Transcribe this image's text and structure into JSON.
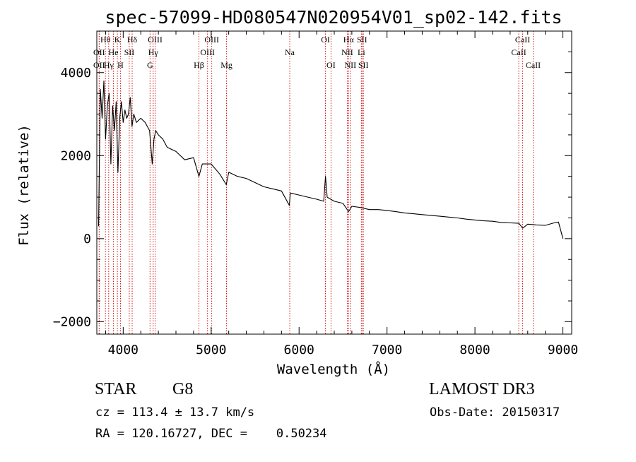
{
  "chart_data": {
    "type": "line",
    "title": "spec-57099-HD080547N020954V01_sp02-142.fits",
    "xlabel": "Wavelength (Å)",
    "ylabel": "Flux (relative)",
    "xlim": [
      3700,
      9100
    ],
    "ylim": [
      -2300,
      5000
    ],
    "xticks": [
      4000,
      5000,
      6000,
      7000,
      8000,
      9000
    ],
    "yticks": [
      -2000,
      0,
      2000,
      4000
    ],
    "minor_x_step": 200,
    "minor_y_step": 500,
    "series": [
      {
        "name": "flux",
        "x": [
          3720,
          3740,
          3760,
          3780,
          3800,
          3820,
          3840,
          3860,
          3880,
          3900,
          3920,
          3940,
          3960,
          3980,
          4000,
          4020,
          4040,
          4060,
          4080,
          4100,
          4120,
          4150,
          4200,
          4250,
          4300,
          4330,
          4350,
          4370,
          4400,
          4450,
          4500,
          4600,
          4700,
          4800,
          4861,
          4900,
          5000,
          5100,
          5172,
          5200,
          5300,
          5400,
          5500,
          5600,
          5700,
          5800,
          5890,
          5900,
          6000,
          6100,
          6200,
          6280,
          6300,
          6320,
          6400,
          6500,
          6563,
          6600,
          6700,
          6800,
          6900,
          7000,
          7100,
          7200,
          7300,
          7400,
          7500,
          7600,
          7700,
          7800,
          7900,
          8000,
          8100,
          8200,
          8300,
          8400,
          8500,
          8542,
          8600,
          8700,
          8800,
          8900,
          8950,
          9000
        ],
        "values": [
          300,
          3600,
          2900,
          3800,
          2400,
          3200,
          3500,
          1800,
          3200,
          2600,
          3300,
          1600,
          2900,
          3300,
          2800,
          3100,
          2900,
          3000,
          3400,
          2700,
          3000,
          2800,
          2900,
          2800,
          2600,
          1800,
          2400,
          2600,
          2500,
          2400,
          2200,
          2100,
          1900,
          1950,
          1500,
          1800,
          1800,
          1550,
          1300,
          1600,
          1500,
          1450,
          1350,
          1250,
          1200,
          1150,
          800,
          1100,
          1050,
          1000,
          950,
          900,
          1500,
          1000,
          900,
          850,
          650,
          780,
          750,
          700,
          700,
          680,
          650,
          620,
          600,
          580,
          560,
          540,
          520,
          500,
          470,
          450,
          430,
          420,
          390,
          380,
          370,
          250,
          350,
          330,
          320,
          380,
          400,
          0
        ]
      }
    ],
    "lines": [
      {
        "label": "OII",
        "x": 3727,
        "row": 2
      },
      {
        "label": "OII",
        "x": 3727,
        "row": 3
      },
      {
        "label": "Hθ",
        "x": 3798,
        "row": 1
      },
      {
        "label": "He",
        "x": 3889,
        "row": 2
      },
      {
        "label": "Hγ",
        "x": 3835,
        "row": 3
      },
      {
        "label": "K",
        "x": 3934,
        "row": 1
      },
      {
        "label": "SII",
        "x": 4069,
        "row": 2
      },
      {
        "label": "H",
        "x": 3969,
        "row": 3
      },
      {
        "label": "Hδ",
        "x": 4102,
        "row": 1
      },
      {
        "label": "OIII",
        "x": 4363,
        "row": 1
      },
      {
        "label": "Hγ",
        "x": 4341,
        "row": 2
      },
      {
        "label": "G",
        "x": 4305,
        "row": 3
      },
      {
        "label": "Hβ",
        "x": 4861,
        "row": 3
      },
      {
        "label": "OIII",
        "x": 5007,
        "row": 1
      },
      {
        "label": "OIII",
        "x": 4959,
        "row": 2
      },
      {
        "label": "Mg",
        "x": 5175,
        "row": 3
      },
      {
        "label": "Na",
        "x": 5894,
        "row": 2
      },
      {
        "label": "OI",
        "x": 6300,
        "row": 1
      },
      {
        "label": "OI",
        "x": 6363,
        "row": 3
      },
      {
        "label": "Hα",
        "x": 6563,
        "row": 1
      },
      {
        "label": "SII",
        "x": 6716,
        "row": 1
      },
      {
        "label": "NII",
        "x": 6548,
        "row": 2
      },
      {
        "label": "Li",
        "x": 6708,
        "row": 2
      },
      {
        "label": "NII",
        "x": 6583,
        "row": 3
      },
      {
        "label": "SII",
        "x": 6731,
        "row": 3
      },
      {
        "label": "CaII",
        "x": 8542,
        "row": 1
      },
      {
        "label": "CaII",
        "x": 8498,
        "row": 2
      },
      {
        "label": "CaII",
        "x": 8662,
        "row": 3
      }
    ]
  },
  "info": {
    "class_label": "STAR",
    "subclass": "G8",
    "survey": "LAMOST DR3",
    "cz": "cz = 113.4 ± 13.7 km/s",
    "obs_date": "Obs-Date: 20150317",
    "coords": "RA = 120.16727, DEC =    0.50234"
  },
  "colors": {
    "line": "#000000",
    "marker": "#cc0000",
    "axes": "#000000"
  }
}
